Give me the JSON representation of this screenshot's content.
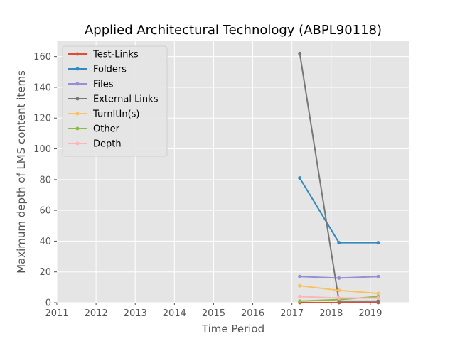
{
  "chart_data": {
    "type": "line",
    "title": "Applied Architectural Technology (ABPL90118)",
    "xlabel": "Time Period",
    "ylabel": "Maximum depth of LMS content items",
    "xlim": [
      2011,
      2020
    ],
    "ylim": [
      0,
      170
    ],
    "xticks": [
      "2011",
      "2012",
      "2013",
      "2014",
      "2015",
      "2016",
      "2017",
      "2018",
      "2019"
    ],
    "yticks": [
      "0",
      "20",
      "40",
      "60",
      "80",
      "100",
      "120",
      "140",
      "160"
    ],
    "grid": true,
    "legend_position": "top-left",
    "x": [
      2017.2,
      2018.2,
      2019.2
    ],
    "series": [
      {
        "name": "Test-Links",
        "color": "#E24A33",
        "values": [
          0,
          0,
          0
        ]
      },
      {
        "name": "Folders",
        "color": "#348ABD",
        "values": [
          81,
          39,
          39
        ]
      },
      {
        "name": "Files",
        "color": "#988ED5",
        "values": [
          17,
          16,
          17
        ]
      },
      {
        "name": "External Links",
        "color": "#777777",
        "values": [
          162,
          1,
          1
        ]
      },
      {
        "name": "TurnItIn(s)",
        "color": "#FBC15E",
        "values": [
          11,
          8,
          6
        ]
      },
      {
        "name": "Other",
        "color": "#8EBA42",
        "values": [
          1,
          2,
          4
        ]
      },
      {
        "name": "Depth",
        "color": "#FFB5B8",
        "values": [
          4,
          3,
          3
        ]
      }
    ]
  }
}
